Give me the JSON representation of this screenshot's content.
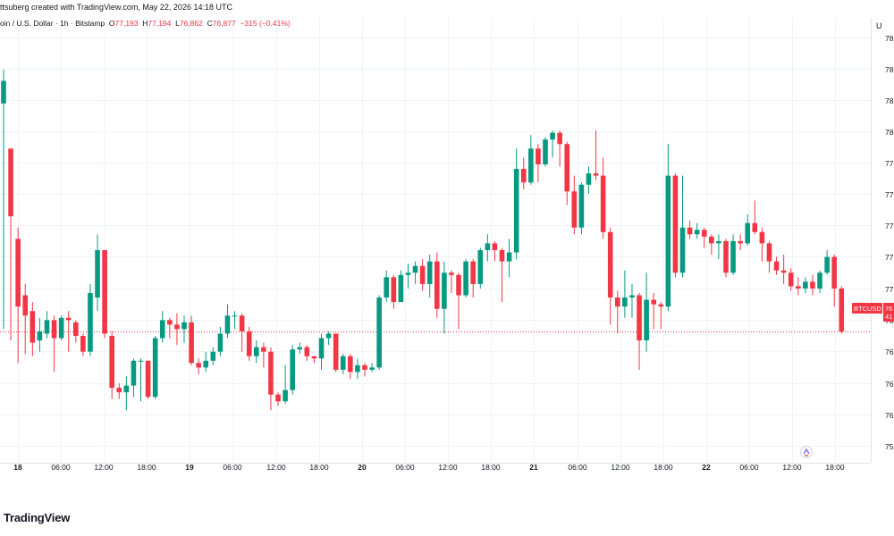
{
  "header": {
    "credit": "ttsuberg created with TradingView.com, May 22, 2026 14:18 UTC"
  },
  "legend": {
    "symbol": "oin / U.S. Dollar · 1h · Bitstamp",
    "o_label": "O",
    "o_value": "77,193",
    "h_label": "H",
    "h_value": "77,194",
    "l_label": "L",
    "l_value": "76,862",
    "c_label": "C",
    "c_value": "76,877",
    "change": "−315 (−0.41%)"
  },
  "axis_corner": "U",
  "brand": "TradingView",
  "colors": {
    "up": "#089981",
    "down": "#f23645",
    "grid": "#f0f3fa",
    "text": "#131722",
    "price_line": "#f23645"
  },
  "chart_data": {
    "type": "candlestick",
    "y_tick_labels": [
      "78",
      "78",
      "78",
      "78",
      "77",
      "77",
      "77",
      "77",
      "77",
      "76",
      "76",
      "76",
      "76",
      "75"
    ],
    "x_tick_labels": [
      "18",
      "06:00",
      "12:00",
      "18:00",
      "19",
      "06:00",
      "12:00",
      "18:00",
      "20",
      "06:00",
      "12:00",
      "18:00",
      "21",
      "06:00",
      "12:00",
      "18:00",
      "22",
      "06:00",
      "12:00",
      "18:00"
    ],
    "price_label": {
      "symbol": "BTCUSD",
      "value": "76",
      "countdown": "41"
    },
    "candles": [
      {
        "o": 78000,
        "c": 78100,
        "h": 78150,
        "l": 77000
      },
      {
        "o": 77800,
        "c": 77500,
        "h": 77800,
        "l": 76950
      },
      {
        "o": 77400,
        "c": 77100,
        "h": 77450,
        "l": 76850
      },
      {
        "o": 77150,
        "c": 77060,
        "h": 77200,
        "l": 76890
      },
      {
        "o": 77080,
        "c": 76940,
        "h": 77120,
        "l": 76880
      },
      {
        "o": 76950,
        "c": 76990,
        "h": 77050,
        "l": 76900
      },
      {
        "o": 76980,
        "c": 77040,
        "h": 77080,
        "l": 76960
      },
      {
        "o": 77040,
        "c": 76960,
        "h": 77060,
        "l": 76810
      },
      {
        "o": 76960,
        "c": 77050,
        "h": 77060,
        "l": 76950
      },
      {
        "o": 77050,
        "c": 77040,
        "h": 77080,
        "l": 76900
      },
      {
        "o": 77030,
        "c": 76970,
        "h": 77040,
        "l": 76940
      },
      {
        "o": 76970,
        "c": 76900,
        "h": 76980,
        "l": 76880
      },
      {
        "o": 76900,
        "c": 77160,
        "h": 77200,
        "l": 76880
      },
      {
        "o": 77140,
        "c": 77350,
        "h": 77420,
        "l": 77080
      },
      {
        "o": 77350,
        "c": 76980,
        "h": 77350,
        "l": 76960
      },
      {
        "o": 76970,
        "c": 76740,
        "h": 76990,
        "l": 76690
      },
      {
        "o": 76740,
        "c": 76720,
        "h": 76760,
        "l": 76690
      },
      {
        "o": 76720,
        "c": 76750,
        "h": 76790,
        "l": 76640
      },
      {
        "o": 76750,
        "c": 76860,
        "h": 76870,
        "l": 76700
      },
      {
        "o": 76860,
        "c": 76860,
        "h": 76870,
        "l": 76680
      },
      {
        "o": 76860,
        "c": 76700,
        "h": 76860,
        "l": 76690
      },
      {
        "o": 76700,
        "c": 76960,
        "h": 76970,
        "l": 76690
      },
      {
        "o": 76960,
        "c": 77040,
        "h": 77080,
        "l": 76940
      },
      {
        "o": 77040,
        "c": 77020,
        "h": 77050,
        "l": 76960
      },
      {
        "o": 77020,
        "c": 77000,
        "h": 77070,
        "l": 76930
      },
      {
        "o": 77000,
        "c": 77030,
        "h": 77060,
        "l": 76940
      },
      {
        "o": 77030,
        "c": 76850,
        "h": 77060,
        "l": 76840
      },
      {
        "o": 76850,
        "c": 76830,
        "h": 76870,
        "l": 76800
      },
      {
        "o": 76830,
        "c": 76860,
        "h": 76900,
        "l": 76810
      },
      {
        "o": 76860,
        "c": 76900,
        "h": 76920,
        "l": 76840
      },
      {
        "o": 76900,
        "c": 76980,
        "h": 77010,
        "l": 76880
      },
      {
        "o": 76980,
        "c": 77060,
        "h": 77110,
        "l": 76960
      },
      {
        "o": 77060,
        "c": 77060,
        "h": 77080,
        "l": 77000
      },
      {
        "o": 77060,
        "c": 76990,
        "h": 77070,
        "l": 76900
      },
      {
        "o": 76990,
        "c": 76880,
        "h": 77010,
        "l": 76860
      },
      {
        "o": 76880,
        "c": 76920,
        "h": 76950,
        "l": 76850
      },
      {
        "o": 76920,
        "c": 76900,
        "h": 76940,
        "l": 76830
      },
      {
        "o": 76900,
        "c": 76710,
        "h": 76920,
        "l": 76640
      },
      {
        "o": 76710,
        "c": 76680,
        "h": 76720,
        "l": 76660
      },
      {
        "o": 76680,
        "c": 76730,
        "h": 76840,
        "l": 76670
      },
      {
        "o": 76730,
        "c": 76910,
        "h": 76930,
        "l": 76710
      },
      {
        "o": 76910,
        "c": 76920,
        "h": 76940,
        "l": 76890
      },
      {
        "o": 76920,
        "c": 76880,
        "h": 76930,
        "l": 76860
      },
      {
        "o": 76880,
        "c": 76870,
        "h": 76880,
        "l": 76850
      },
      {
        "o": 76870,
        "c": 76960,
        "h": 76980,
        "l": 76820
      },
      {
        "o": 76960,
        "c": 76980,
        "h": 76990,
        "l": 76930
      },
      {
        "o": 76980,
        "c": 76820,
        "h": 76980,
        "l": 76810
      },
      {
        "o": 76820,
        "c": 76880,
        "h": 76890,
        "l": 76800
      },
      {
        "o": 76880,
        "c": 76810,
        "h": 76890,
        "l": 76780
      },
      {
        "o": 76810,
        "c": 76840,
        "h": 76870,
        "l": 76780
      },
      {
        "o": 76840,
        "c": 76820,
        "h": 76850,
        "l": 76790
      },
      {
        "o": 76820,
        "c": 76830,
        "h": 76850,
        "l": 76810
      },
      {
        "o": 76830,
        "c": 77140,
        "h": 77150,
        "l": 76820
      },
      {
        "o": 77140,
        "c": 77230,
        "h": 77260,
        "l": 77120
      },
      {
        "o": 77230,
        "c": 77120,
        "h": 77240,
        "l": 77090
      },
      {
        "o": 77120,
        "c": 77240,
        "h": 77260,
        "l": 77120
      },
      {
        "o": 77240,
        "c": 77250,
        "h": 77290,
        "l": 77180
      },
      {
        "o": 77250,
        "c": 77280,
        "h": 77300,
        "l": 77200
      },
      {
        "o": 77280,
        "c": 77200,
        "h": 77310,
        "l": 77170
      },
      {
        "o": 77200,
        "c": 77300,
        "h": 77330,
        "l": 77140
      },
      {
        "o": 77300,
        "c": 77090,
        "h": 77340,
        "l": 77050
      },
      {
        "o": 77090,
        "c": 77250,
        "h": 77300,
        "l": 76980
      },
      {
        "o": 77250,
        "c": 77240,
        "h": 77260,
        "l": 77160
      },
      {
        "o": 77240,
        "c": 77150,
        "h": 77250,
        "l": 77000
      },
      {
        "o": 77150,
        "c": 77300,
        "h": 77310,
        "l": 77140
      },
      {
        "o": 77300,
        "c": 77200,
        "h": 77310,
        "l": 77140
      },
      {
        "o": 77200,
        "c": 77350,
        "h": 77360,
        "l": 77180
      },
      {
        "o": 77350,
        "c": 77380,
        "h": 77420,
        "l": 77300
      },
      {
        "o": 77380,
        "c": 77350,
        "h": 77390,
        "l": 77300
      },
      {
        "o": 77350,
        "c": 77300,
        "h": 77360,
        "l": 77120
      },
      {
        "o": 77300,
        "c": 77340,
        "h": 77400,
        "l": 77230
      },
      {
        "o": 77340,
        "c": 77710,
        "h": 77800,
        "l": 77310
      },
      {
        "o": 77710,
        "c": 77650,
        "h": 77760,
        "l": 77620
      },
      {
        "o": 77650,
        "c": 77800,
        "h": 77860,
        "l": 77640
      },
      {
        "o": 77800,
        "c": 77730,
        "h": 77820,
        "l": 77650
      },
      {
        "o": 77730,
        "c": 77840,
        "h": 77850,
        "l": 77720
      },
      {
        "o": 77840,
        "c": 77870,
        "h": 77880,
        "l": 77760
      },
      {
        "o": 77870,
        "c": 77820,
        "h": 77880,
        "l": 77720
      },
      {
        "o": 77820,
        "c": 77610,
        "h": 77830,
        "l": 77550
      },
      {
        "o": 77610,
        "c": 77450,
        "h": 77680,
        "l": 77420
      },
      {
        "o": 77450,
        "c": 77640,
        "h": 77650,
        "l": 77420
      },
      {
        "o": 77640,
        "c": 77690,
        "h": 77720,
        "l": 77600
      },
      {
        "o": 77690,
        "c": 77680,
        "h": 77880,
        "l": 77660
      },
      {
        "o": 77680,
        "c": 77430,
        "h": 77760,
        "l": 77400
      },
      {
        "o": 77430,
        "c": 77140,
        "h": 77450,
        "l": 77020
      },
      {
        "o": 77140,
        "c": 77100,
        "h": 77170,
        "l": 76980
      },
      {
        "o": 77100,
        "c": 77140,
        "h": 77260,
        "l": 77050
      },
      {
        "o": 77140,
        "c": 77150,
        "h": 77200,
        "l": 77050
      },
      {
        "o": 77150,
        "c": 76950,
        "h": 77160,
        "l": 76820
      },
      {
        "o": 76950,
        "c": 77130,
        "h": 77250,
        "l": 76900
      },
      {
        "o": 77130,
        "c": 77110,
        "h": 77160,
        "l": 77000
      },
      {
        "o": 77110,
        "c": 77100,
        "h": 77120,
        "l": 77000
      },
      {
        "o": 77100,
        "c": 77680,
        "h": 77820,
        "l": 77080
      },
      {
        "o": 77680,
        "c": 77250,
        "h": 77690,
        "l": 77230
      },
      {
        "o": 77250,
        "c": 77450,
        "h": 77680,
        "l": 77230
      },
      {
        "o": 77450,
        "c": 77420,
        "h": 77480,
        "l": 77400
      },
      {
        "o": 77420,
        "c": 77440,
        "h": 77470,
        "l": 77400
      },
      {
        "o": 77440,
        "c": 77410,
        "h": 77450,
        "l": 77360
      },
      {
        "o": 77410,
        "c": 77380,
        "h": 77420,
        "l": 77330
      },
      {
        "o": 77380,
        "c": 77390,
        "h": 77420,
        "l": 77310
      },
      {
        "o": 77390,
        "c": 77250,
        "h": 77400,
        "l": 77230
      },
      {
        "o": 77250,
        "c": 77390,
        "h": 77420,
        "l": 77240
      },
      {
        "o": 77390,
        "c": 77380,
        "h": 77420,
        "l": 77350
      },
      {
        "o": 77380,
        "c": 77470,
        "h": 77510,
        "l": 77370
      },
      {
        "o": 77470,
        "c": 77430,
        "h": 77570,
        "l": 77420
      },
      {
        "o": 77430,
        "c": 77380,
        "h": 77450,
        "l": 77300
      },
      {
        "o": 77380,
        "c": 77300,
        "h": 77390,
        "l": 77250
      },
      {
        "o": 77300,
        "c": 77260,
        "h": 77320,
        "l": 77240
      },
      {
        "o": 77260,
        "c": 77250,
        "h": 77330,
        "l": 77200
      },
      {
        "o": 77250,
        "c": 77190,
        "h": 77270,
        "l": 77170
      },
      {
        "o": 77190,
        "c": 77180,
        "h": 77230,
        "l": 77150
      },
      {
        "o": 77180,
        "c": 77210,
        "h": 77230,
        "l": 77160
      },
      {
        "o": 77210,
        "c": 77180,
        "h": 77240,
        "l": 77150
      },
      {
        "o": 77180,
        "c": 77250,
        "h": 77260,
        "l": 77160
      },
      {
        "o": 77250,
        "c": 77320,
        "h": 77350,
        "l": 77240
      },
      {
        "o": 77320,
        "c": 77180,
        "h": 77330,
        "l": 77100
      },
      {
        "o": 77180,
        "c": 76990,
        "h": 77190,
        "l": 76980
      }
    ]
  }
}
